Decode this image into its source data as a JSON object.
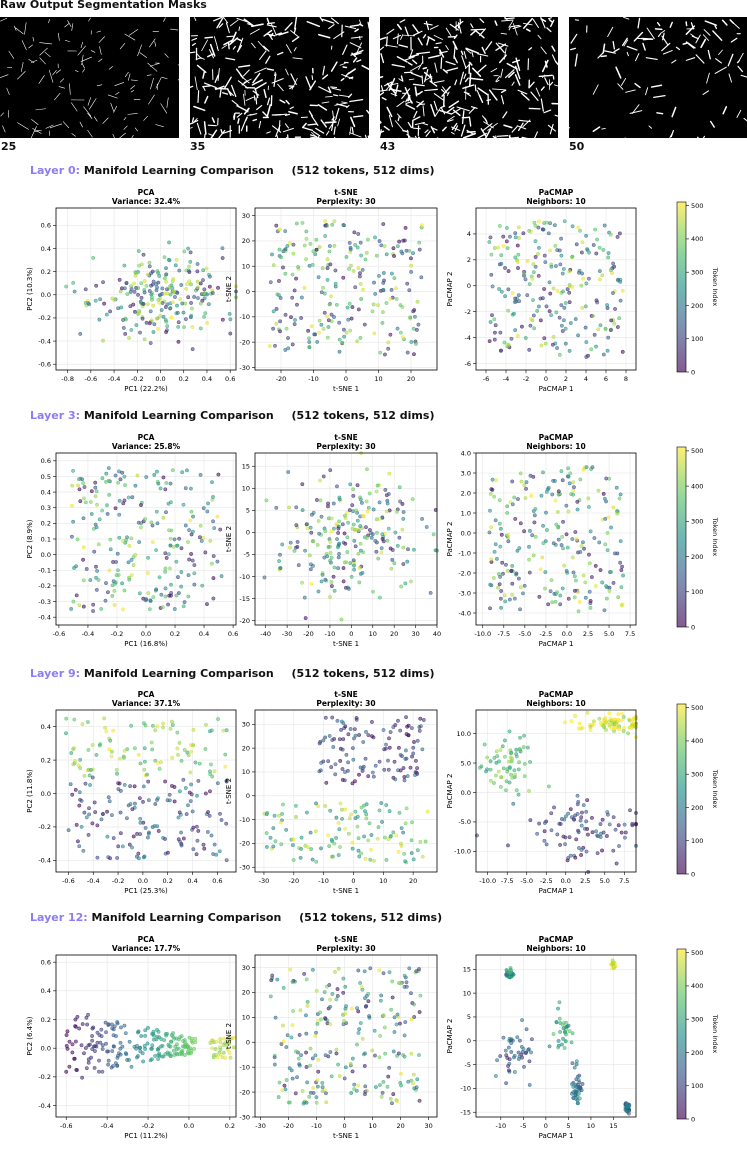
{
  "header": {
    "title": "Raw Output Segmentation Masks"
  },
  "thumbnails": [
    {
      "label": "25"
    },
    {
      "label": "35"
    },
    {
      "label": "43"
    },
    {
      "label": "50"
    }
  ],
  "layers": [
    {
      "layer_label": "Layer 0:",
      "heading": "Manifold Learning Comparison",
      "info": "(512 tokens, 512 dims)"
    },
    {
      "layer_label": "Layer 3:",
      "heading": "Manifold Learning Comparison",
      "info": "(512 tokens, 512 dims)"
    },
    {
      "layer_label": "Layer 9:",
      "heading": "Manifold Learning Comparison",
      "info": "(512 tokens, 512 dims)"
    },
    {
      "layer_label": "Layer 12:",
      "heading": "Manifold Learning Comparison",
      "info": "(512 tokens, 512 dims)"
    }
  ],
  "colormap": {
    "name": "viridis",
    "stops": [
      "#440154",
      "#3b528b",
      "#21918c",
      "#5ec962",
      "#fde725"
    ]
  },
  "chart_data": [
    {
      "type": "scatter",
      "layer": 0,
      "method": "PCA",
      "title": "PCA",
      "subtitle": "Variance: 32.4%",
      "xlabel": "PC1 (22.2%)",
      "ylabel": "PC2 (10.3%)",
      "xlim": [
        -0.9,
        0.65
      ],
      "ylim": [
        -0.65,
        0.75
      ],
      "xticks": [
        -0.8,
        -0.6,
        -0.4,
        -0.2,
        0.0,
        0.2,
        0.4,
        0.6
      ],
      "yticks": [
        -0.6,
        -0.4,
        -0.2,
        0.0,
        0.2,
        0.4,
        0.6
      ],
      "tickdec": 1,
      "pattern": "blob",
      "center": [
        0.0,
        0.0
      ],
      "spread": [
        0.28,
        0.17
      ],
      "grid": true
    },
    {
      "type": "scatter",
      "layer": 0,
      "method": "t-SNE",
      "title": "t-SNE",
      "subtitle": "Perplexity: 30",
      "xlabel": "t-SNE 1",
      "ylabel": "t-SNE 2",
      "xlim": [
        -28,
        28
      ],
      "ylim": [
        -31,
        33
      ],
      "xticks": [
        -20,
        -10,
        0,
        10,
        20
      ],
      "yticks": [
        -30,
        -20,
        -10,
        0,
        10,
        20,
        30
      ],
      "tickdec": 0,
      "pattern": "uniform",
      "grid": true
    },
    {
      "type": "scatter",
      "layer": 0,
      "method": "PaCMAP",
      "title": "PaCMAP",
      "subtitle": "Neighbors: 10",
      "xlabel": "PaCMAP 1",
      "ylabel": "PaCMAP 2",
      "xlim": [
        -7,
        9
      ],
      "ylim": [
        -6.5,
        6
      ],
      "xticks": [
        -6,
        -4,
        -2,
        0,
        2,
        4,
        6,
        8
      ],
      "yticks": [
        -6,
        -4,
        -2,
        0,
        2,
        4
      ],
      "tickdec": 0,
      "pattern": "uniform",
      "grid": true
    },
    {
      "type": "scatter",
      "layer": 3,
      "method": "PCA",
      "title": "PCA",
      "subtitle": "Variance: 25.8%",
      "xlabel": "PC1 (16.8%)",
      "ylabel": "PC2 (8.9%)",
      "xlim": [
        -0.62,
        0.62
      ],
      "ylim": [
        -0.45,
        0.65
      ],
      "xticks": [
        -0.6,
        -0.4,
        -0.2,
        0.0,
        0.2,
        0.4,
        0.6
      ],
      "yticks": [
        -0.4,
        -0.3,
        -0.2,
        -0.1,
        0.0,
        0.1,
        0.2,
        0.3,
        0.4,
        0.5,
        0.6
      ],
      "tickdec": 1,
      "pattern": "uniform",
      "grid": true
    },
    {
      "type": "scatter",
      "layer": 3,
      "method": "t-SNE",
      "title": "t-SNE",
      "subtitle": "Perplexity: 30",
      "xlabel": "t-SNE 1",
      "ylabel": "t-SNE 2",
      "xlim": [
        -45,
        40
      ],
      "ylim": [
        -21,
        18
      ],
      "xticks": [
        -40,
        -30,
        -20,
        -10,
        0,
        10,
        20,
        30,
        40
      ],
      "yticks": [
        -20,
        -15,
        -10,
        -5,
        0,
        5,
        10,
        15
      ],
      "tickdec": 0,
      "pattern": "blob",
      "center": [
        0,
        0
      ],
      "spread": [
        16,
        7
      ],
      "grid": true
    },
    {
      "type": "scatter",
      "layer": 3,
      "method": "PaCMAP",
      "title": "PaCMAP",
      "subtitle": "Neighbors: 10",
      "xlabel": "PaCMAP 1",
      "ylabel": "PaCMAP 2",
      "xlim": [
        -10.8,
        8.2
      ],
      "ylim": [
        -4.6,
        4
      ],
      "xticks": [
        -10.0,
        -7.5,
        -5.0,
        -2.5,
        0.0,
        2.5,
        5.0,
        7.5
      ],
      "yticks": [
        -4,
        -3,
        -2,
        -1,
        0,
        1,
        2,
        3,
        4
      ],
      "tickdec": 1,
      "pattern": "uniform",
      "grid": true
    },
    {
      "type": "scatter",
      "layer": 9,
      "method": "PCA",
      "title": "PCA",
      "subtitle": "Variance: 37.1%",
      "xlabel": "PC1 (25.3%)",
      "ylabel": "PC2 (11.8%)",
      "xlim": [
        -0.7,
        0.75
      ],
      "ylim": [
        -0.47,
        0.5
      ],
      "xticks": [
        -0.6,
        -0.4,
        -0.2,
        0.0,
        0.2,
        0.4,
        0.6
      ],
      "yticks": [
        -0.4,
        -0.2,
        0.0,
        0.2,
        0.4
      ],
      "tickdec": 1,
      "pattern": "bands",
      "grid": true
    },
    {
      "type": "scatter",
      "layer": 9,
      "method": "t-SNE",
      "title": "t-SNE",
      "subtitle": "Perplexity: 30",
      "xlabel": "t-SNE 1",
      "ylabel": "t-SNE 2",
      "xlim": [
        -33,
        28
      ],
      "ylim": [
        -32,
        36
      ],
      "xticks": [
        -30,
        -20,
        -10,
        0,
        10,
        20
      ],
      "yticks": [
        -30,
        -20,
        -10,
        0,
        10,
        20,
        30
      ],
      "tickdec": 0,
      "pattern": "two_groups",
      "grid": true
    },
    {
      "type": "scatter",
      "layer": 9,
      "method": "PaCMAP",
      "title": "PaCMAP",
      "subtitle": "Neighbors: 10",
      "xlabel": "PaCMAP 1",
      "ylabel": "PaCMAP 2",
      "xlim": [
        -11.5,
        9
      ],
      "ylim": [
        -13.5,
        14
      ],
      "xticks": [
        -10.0,
        -7.5,
        -5.0,
        -2.5,
        0.0,
        2.5,
        5.0,
        7.5
      ],
      "yticks": [
        -10,
        -5,
        0,
        5,
        10
      ],
      "tickdec": 1,
      "pattern": "clusters",
      "clusters": [
        [
          -7.5,
          5.5,
          1.5,
          2.5,
          0.68
        ],
        [
          6.5,
          11.5,
          2,
          0.8,
          0.95
        ],
        [
          2.5,
          -6.5,
          4,
          3,
          0.2
        ]
      ],
      "grid": true
    },
    {
      "type": "scatter",
      "layer": 12,
      "method": "PCA",
      "title": "PCA",
      "subtitle": "Variance: 17.7%",
      "xlabel": "PC1 (11.2%)",
      "ylabel": "PC2 (6.4%)",
      "xlim": [
        -0.65,
        0.23
      ],
      "ylim": [
        -0.48,
        0.65
      ],
      "xticks": [
        -0.6,
        -0.4,
        -0.2,
        0.0,
        0.2
      ],
      "yticks": [
        -0.4,
        -0.2,
        0.0,
        0.2,
        0.4,
        0.6
      ],
      "tickdec": 1,
      "pattern": "fan",
      "grid": true
    },
    {
      "type": "scatter",
      "layer": 12,
      "method": "t-SNE",
      "title": "t-SNE",
      "subtitle": "Perplexity: 30",
      "xlabel": "t-SNE 1",
      "ylabel": "t-SNE 2",
      "xlim": [
        -32,
        33
      ],
      "ylim": [
        -30,
        35
      ],
      "xticks": [
        -30,
        -20,
        -10,
        0,
        10,
        20,
        30
      ],
      "yticks": [
        -30,
        -20,
        -10,
        0,
        10,
        20,
        30
      ],
      "tickdec": 0,
      "pattern": "uniform",
      "grid": true
    },
    {
      "type": "scatter",
      "layer": 12,
      "method": "PaCMAP",
      "title": "PaCMAP",
      "subtitle": "Neighbors: 10",
      "xlabel": "PaCMAP 1",
      "ylabel": "PaCMAP 2",
      "xlim": [
        -15.5,
        20
      ],
      "ylim": [
        -16,
        18
      ],
      "xticks": [
        -10,
        -5,
        0,
        5,
        10,
        15
      ],
      "yticks": [
        -15,
        -10,
        -5,
        0,
        5,
        10,
        15
      ],
      "tickdec": 0,
      "pattern": "clusters",
      "clusters": [
        [
          -7,
          -3,
          2.5,
          3,
          0.3
        ],
        [
          4,
          2,
          1.5,
          2,
          0.6
        ],
        [
          7,
          -10,
          0.6,
          2,
          0.4
        ],
        [
          -8,
          14,
          0.4,
          0.5,
          0.5
        ],
        [
          15,
          16,
          0.2,
          0.3,
          0.95
        ],
        [
          18,
          -14,
          0.3,
          0.6,
          0.35
        ]
      ],
      "grid": true
    }
  ],
  "colorbar": {
    "label": "Token Index",
    "min": 0,
    "max": 511,
    "ticks": [
      0,
      100,
      200,
      300,
      400,
      500
    ]
  }
}
